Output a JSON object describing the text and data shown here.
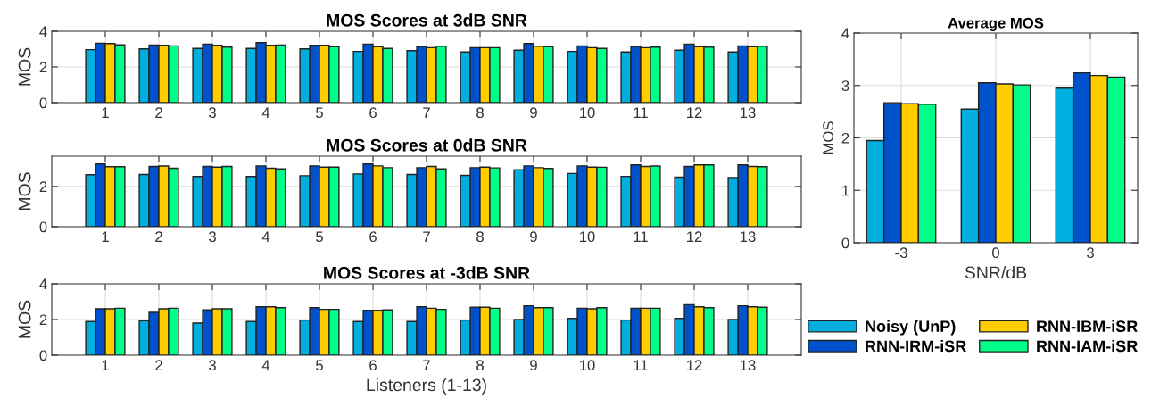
{
  "chart_data": [
    {
      "type": "bar",
      "title": "MOS Scores at 3dB SNR",
      "ylabel": "MOS",
      "categories": [
        "1",
        "2",
        "3",
        "4",
        "5",
        "6",
        "7",
        "8",
        "9",
        "10",
        "11",
        "12",
        "13"
      ],
      "ylim": [
        0,
        4
      ],
      "yticks": [
        0,
        2,
        4
      ],
      "grid": true,
      "series": [
        {
          "color": "#00aee0",
          "values": [
            2.97,
            3.01,
            3.04,
            3.04,
            3.01,
            2.87,
            2.91,
            2.84,
            2.94,
            2.87,
            2.84,
            2.94,
            2.84
          ]
        },
        {
          "color": "#0052cc",
          "values": [
            3.33,
            3.23,
            3.28,
            3.36,
            3.21,
            3.28,
            3.14,
            3.08,
            3.31,
            3.18,
            3.14,
            3.28,
            3.18
          ]
        },
        {
          "color": "#ffcc00",
          "values": [
            3.31,
            3.21,
            3.21,
            3.21,
            3.21,
            3.13,
            3.08,
            3.08,
            3.16,
            3.08,
            3.08,
            3.13,
            3.13
          ]
        },
        {
          "color": "#00ff88",
          "values": [
            3.24,
            3.18,
            3.11,
            3.23,
            3.14,
            3.04,
            3.16,
            3.08,
            3.13,
            3.04,
            3.11,
            3.11,
            3.16
          ]
        }
      ]
    },
    {
      "type": "bar",
      "title": "MOS Scores at 0dB SNR",
      "ylabel": "MOS",
      "categories": [
        "1",
        "2",
        "3",
        "4",
        "5",
        "6",
        "7",
        "8",
        "9",
        "10",
        "11",
        "12",
        "13"
      ],
      "ylim": [
        0,
        3.5
      ],
      "yticks": [
        0,
        2
      ],
      "grid": true,
      "series": [
        {
          "color": "#00aee0",
          "values": [
            2.58,
            2.59,
            2.49,
            2.49,
            2.53,
            2.62,
            2.59,
            2.55,
            2.83,
            2.64,
            2.5,
            2.46,
            2.44
          ]
        },
        {
          "color": "#0052cc",
          "values": [
            3.11,
            2.99,
            2.99,
            3.02,
            3.02,
            3.11,
            2.93,
            2.93,
            3.02,
            3.02,
            3.07,
            2.99,
            3.07
          ]
        },
        {
          "color": "#ffcc00",
          "values": [
            2.98,
            3.01,
            2.96,
            2.9,
            2.96,
            3.02,
            2.99,
            2.96,
            2.93,
            2.96,
            2.99,
            3.07,
            2.99
          ]
        },
        {
          "color": "#00ff88",
          "values": [
            2.98,
            2.9,
            2.99,
            2.87,
            2.96,
            2.93,
            2.87,
            2.92,
            2.89,
            2.95,
            3.01,
            3.07,
            2.98
          ]
        }
      ]
    },
    {
      "type": "bar",
      "title": "MOS Scores at -3dB SNR",
      "xlabel": "Listeners (1-13)",
      "ylabel": "MOS",
      "categories": [
        "1",
        "2",
        "3",
        "4",
        "5",
        "6",
        "7",
        "8",
        "9",
        "10",
        "11",
        "12",
        "13"
      ],
      "ylim": [
        0,
        4
      ],
      "yticks": [
        0,
        2,
        4
      ],
      "grid": true,
      "series": [
        {
          "color": "#00aee0",
          "values": [
            1.89,
            1.94,
            1.8,
            1.89,
            1.97,
            1.89,
            1.89,
            1.97,
            2.0,
            2.06,
            1.97,
            2.06,
            2.0
          ]
        },
        {
          "color": "#0052cc",
          "values": [
            2.6,
            2.4,
            2.54,
            2.71,
            2.66,
            2.51,
            2.71,
            2.69,
            2.77,
            2.63,
            2.63,
            2.83,
            2.77
          ]
        },
        {
          "color": "#ffcc00",
          "values": [
            2.6,
            2.6,
            2.6,
            2.71,
            2.57,
            2.51,
            2.63,
            2.69,
            2.66,
            2.6,
            2.63,
            2.71,
            2.71
          ]
        },
        {
          "color": "#00ff88",
          "values": [
            2.63,
            2.63,
            2.6,
            2.66,
            2.57,
            2.54,
            2.57,
            2.63,
            2.66,
            2.66,
            2.63,
            2.66,
            2.69
          ]
        }
      ]
    },
    {
      "type": "bar",
      "title": "Average MOS",
      "xlabel": "SNR/dB",
      "ylabel": "MOS",
      "categories": [
        "-3",
        "0",
        "3"
      ],
      "ylim": [
        0,
        4
      ],
      "yticks": [
        0,
        1,
        2,
        3,
        4
      ],
      "grid": true,
      "legend": "bottom",
      "series": [
        {
          "name": "Noisy (UnP)",
          "color": "#00aee0",
          "values": [
            1.95,
            2.55,
            2.95
          ]
        },
        {
          "name": "RNN-IRM-iSR",
          "color": "#0052cc",
          "values": [
            2.67,
            3.05,
            3.24
          ]
        },
        {
          "name": "RNN-IBM-iSR",
          "color": "#ffcc00",
          "values": [
            2.65,
            3.03,
            3.19
          ]
        },
        {
          "name": "RNN-IAM-iSR",
          "color": "#00ff88",
          "values": [
            2.64,
            3.01,
            3.16
          ]
        }
      ]
    }
  ]
}
